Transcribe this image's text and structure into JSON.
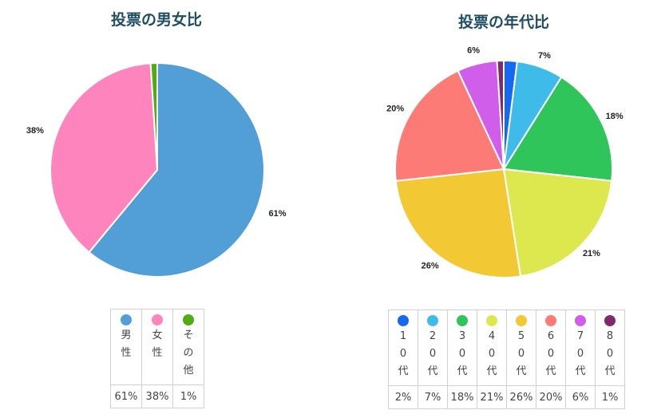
{
  "chart_data": [
    {
      "type": "pie",
      "title": "投票の男女比",
      "categories": [
        "男性",
        "女性",
        "その他"
      ],
      "values": [
        61,
        38,
        1
      ],
      "value_labels": [
        "61%",
        "38%",
        "1%"
      ],
      "colors": [
        "#529fd8",
        "#fd84bc",
        "#4fac12"
      ],
      "legend_position": "bottom-table"
    },
    {
      "type": "pie",
      "title": "投票の年代比",
      "categories": [
        "10代",
        "20代",
        "30代",
        "40代",
        "50代",
        "60代",
        "70代",
        "80代"
      ],
      "values": [
        2,
        7,
        18,
        21,
        26,
        20,
        6,
        1
      ],
      "value_labels": [
        "2%",
        "7%",
        "18%",
        "21%",
        "26%",
        "20%",
        "6%",
        "1%"
      ],
      "colors": [
        "#1768f0",
        "#3ebbe8",
        "#2fc55b",
        "#dde84f",
        "#f2c934",
        "#fd7b77",
        "#d15eea",
        "#7e2a6d"
      ],
      "legend_position": "bottom-table"
    }
  ]
}
